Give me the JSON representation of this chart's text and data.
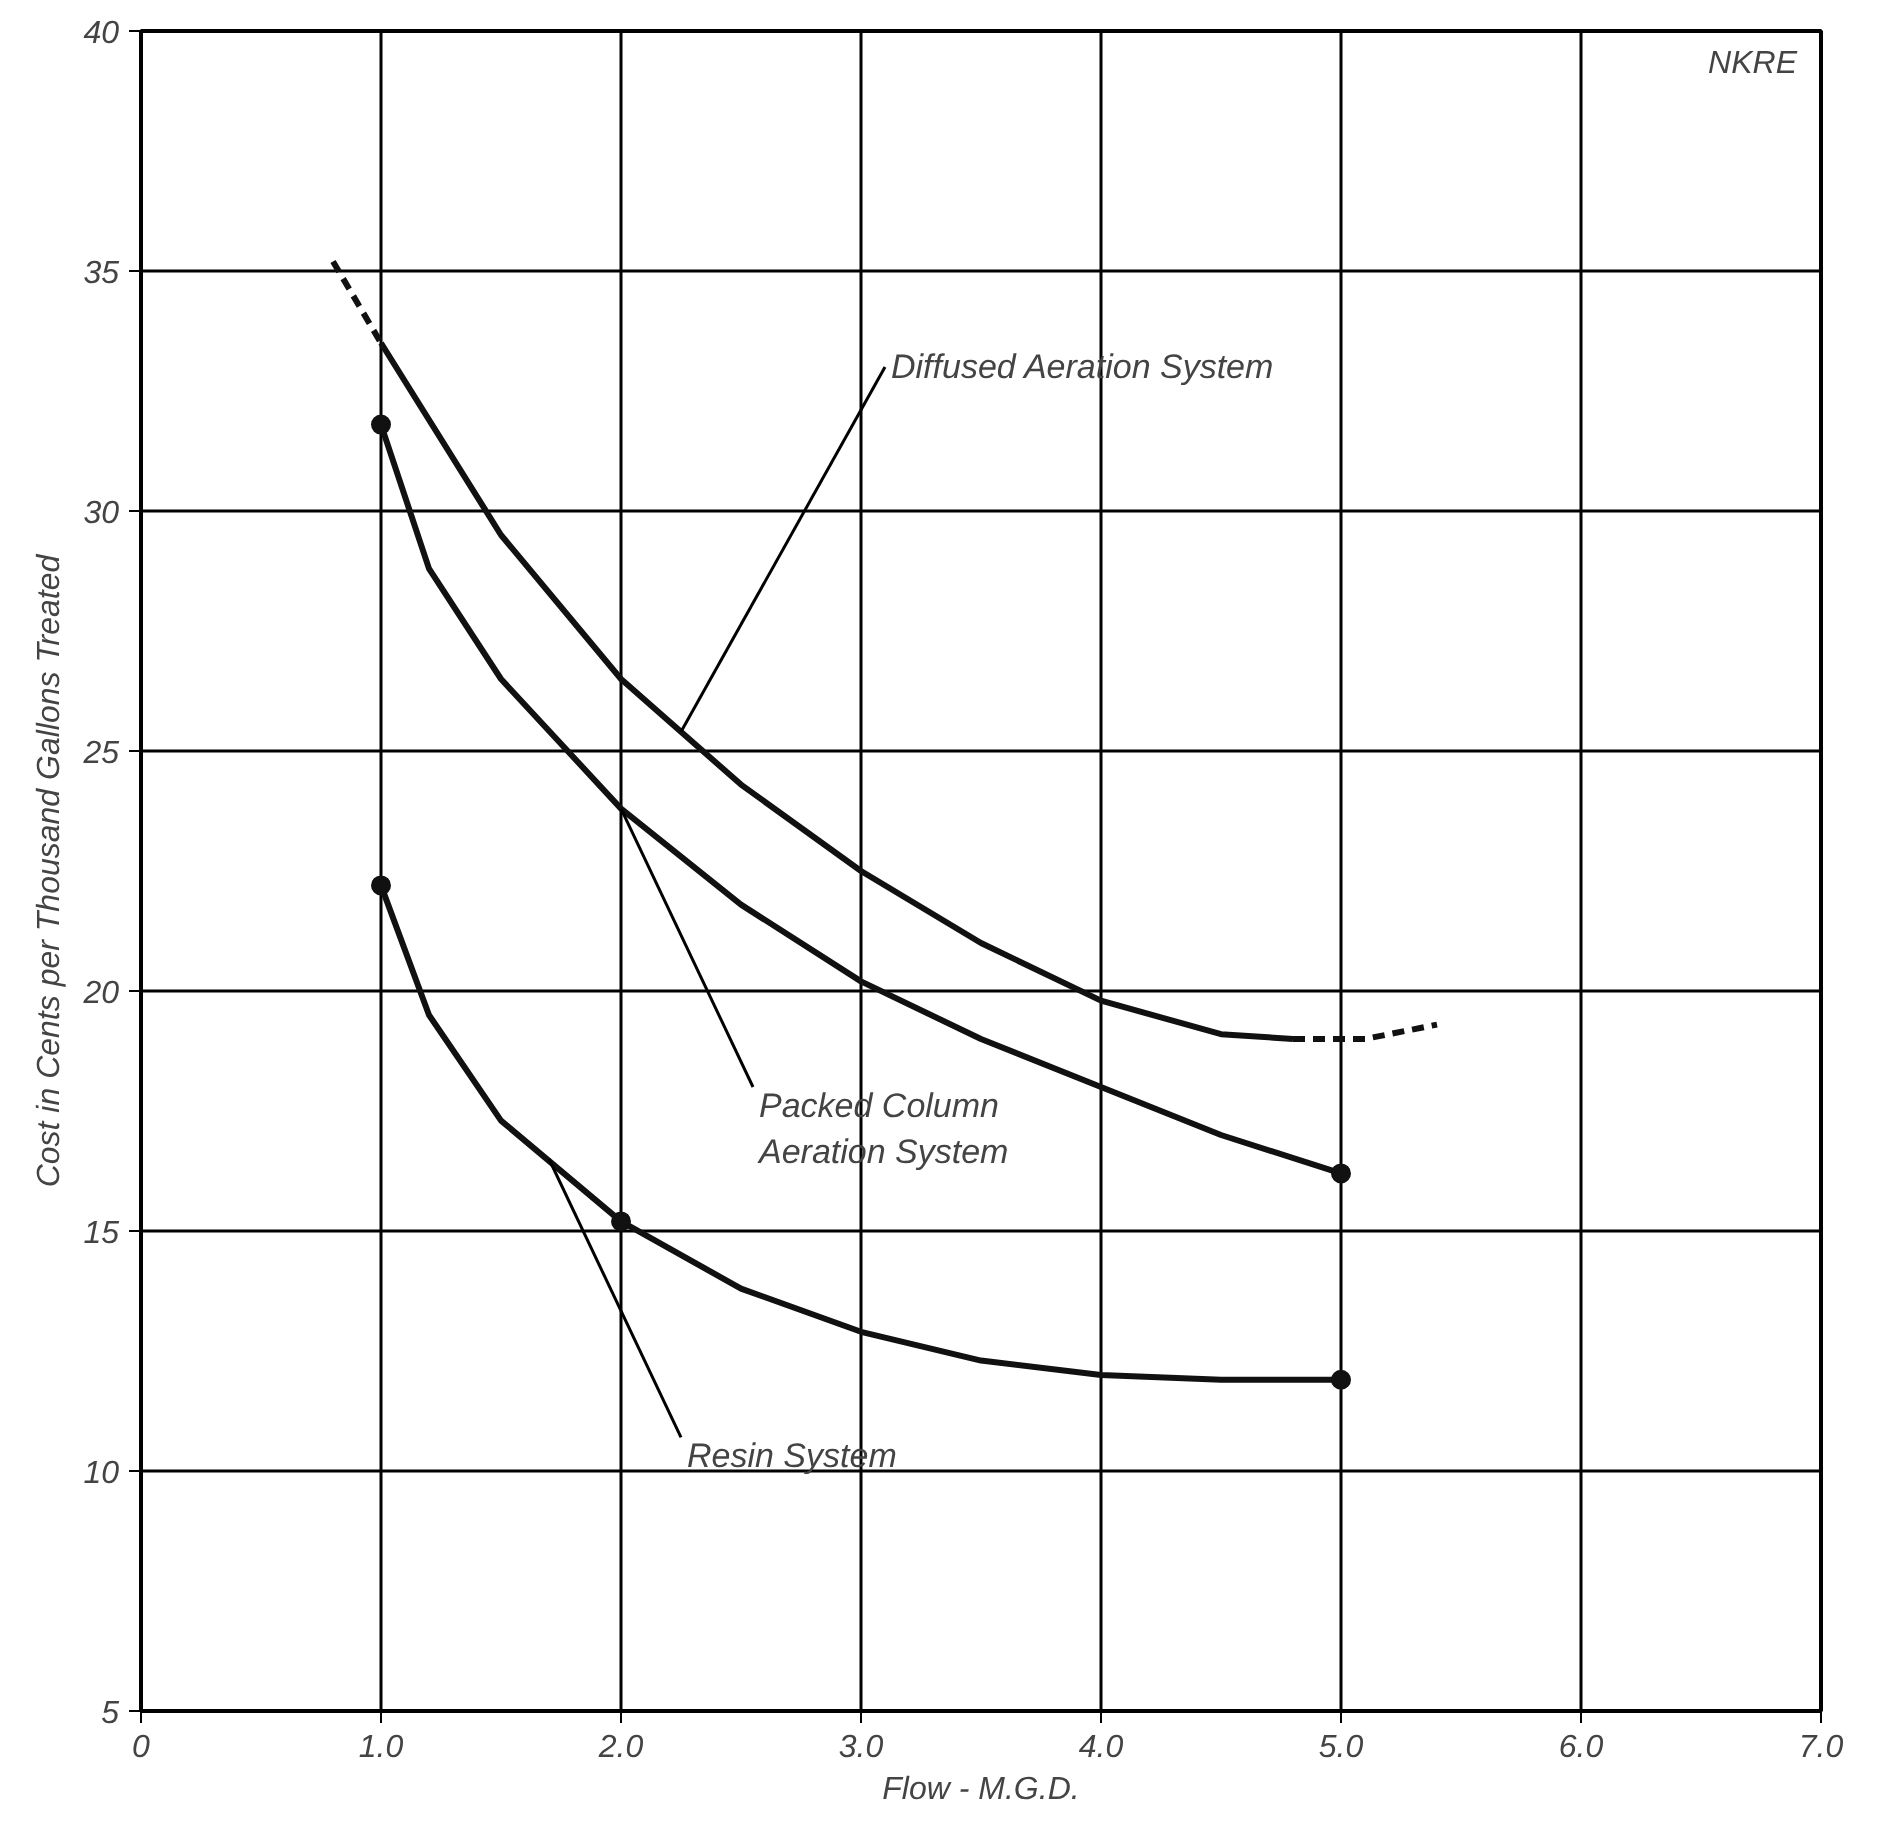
{
  "chart_data": {
    "type": "line",
    "xlabel": "Flow - M.G.D.",
    "ylabel": "Cost in Cents per Thousand Gallons Treated",
    "xlim": [
      0,
      7
    ],
    "ylim": [
      5,
      40
    ],
    "xticks": [
      0,
      {
        "value": 1,
        "label": "1.0"
      },
      {
        "value": 2,
        "label": "2.0"
      },
      {
        "value": 3,
        "label": "3.0"
      },
      {
        "value": 4,
        "label": "4.0"
      },
      {
        "value": 5,
        "label": "5.0"
      },
      {
        "value": 6,
        "label": "6.0"
      },
      {
        "value": 7,
        "label": "7.0"
      }
    ],
    "yticks": [
      5,
      10,
      15,
      20,
      25,
      30,
      35,
      40
    ],
    "grid": true,
    "line_style": "solid",
    "marker": "none",
    "series": [
      {
        "color": "#111111",
        "x": [
          1.0,
          1.5,
          2.0,
          2.5,
          3.0,
          3.5,
          4.0,
          4.5,
          4.8
        ],
        "values": [
          33.5,
          29.5,
          26.5,
          24.3,
          22.5,
          21.0,
          19.8,
          19.1,
          19.0
        ]
      },
      {
        "color": "#111111",
        "line_style": "dashed",
        "x": [
          0.8,
          1.0
        ],
        "values": [
          35.2,
          33.5
        ]
      },
      {
        "color": "#111111",
        "line_style": "dashed",
        "x": [
          4.8,
          5.1,
          5.4
        ],
        "values": [
          19.0,
          19.0,
          19.3
        ]
      },
      {
        "color": "#111111",
        "x": [
          1.0,
          1.2,
          1.5,
          2.0,
          2.5,
          3.0,
          3.5,
          4.0,
          4.5,
          5.0
        ],
        "values": [
          31.8,
          28.8,
          26.5,
          23.8,
          21.8,
          20.2,
          19.0,
          18.0,
          17.0,
          16.2
        ]
      },
      {
        "color": "#111111",
        "x": [
          1.0,
          1.2,
          1.5,
          2.0,
          2.5,
          3.0,
          3.5,
          4.0,
          4.5,
          5.0
        ],
        "values": [
          22.2,
          19.5,
          17.3,
          15.2,
          13.8,
          12.9,
          12.3,
          12.0,
          11.9,
          11.9
        ]
      },
      {
        "type": "scatter",
        "marker": "circle",
        "color": "#111111",
        "x": [
          1.0,
          5.0,
          1.0,
          2.0,
          5.0
        ],
        "values": [
          31.8,
          16.2,
          22.2,
          15.2,
          11.9
        ]
      }
    ],
    "annotations": [
      {
        "text": "Diffused Aeration System",
        "x": 2.25,
        "y": 25.4
      },
      {
        "text": "Packed Column\nAeration System",
        "x": 2.0,
        "y": 23.8
      },
      {
        "text": "Resin System",
        "x": 1.7,
        "y": 16.5
      },
      "NKRE"
    ]
  }
}
